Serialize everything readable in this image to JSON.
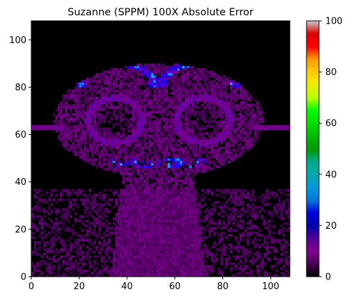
{
  "chart_data": {
    "type": "heatmap",
    "title": "Suzanne (SPPM) 100X Absolute Error",
    "xlabel": "",
    "ylabel": "",
    "xlim": [
      0,
      108
    ],
    "ylim": [
      0,
      108
    ],
    "x_ticks": [
      0,
      20,
      40,
      60,
      80,
      100
    ],
    "y_ticks": [
      0,
      20,
      40,
      60,
      80,
      100
    ],
    "grid": false,
    "colormap": "nipy_spectral",
    "colorbar": {
      "range": [
        0,
        100
      ],
      "ticks": [
        0,
        20,
        40,
        60,
        80,
        100
      ],
      "placement": "right"
    },
    "grid_size": [
      108,
      108
    ],
    "notes": {}
  },
  "colors": {
    "background": "#000000",
    "error_low": "#6a0080",
    "error_high": "#0070ff"
  }
}
